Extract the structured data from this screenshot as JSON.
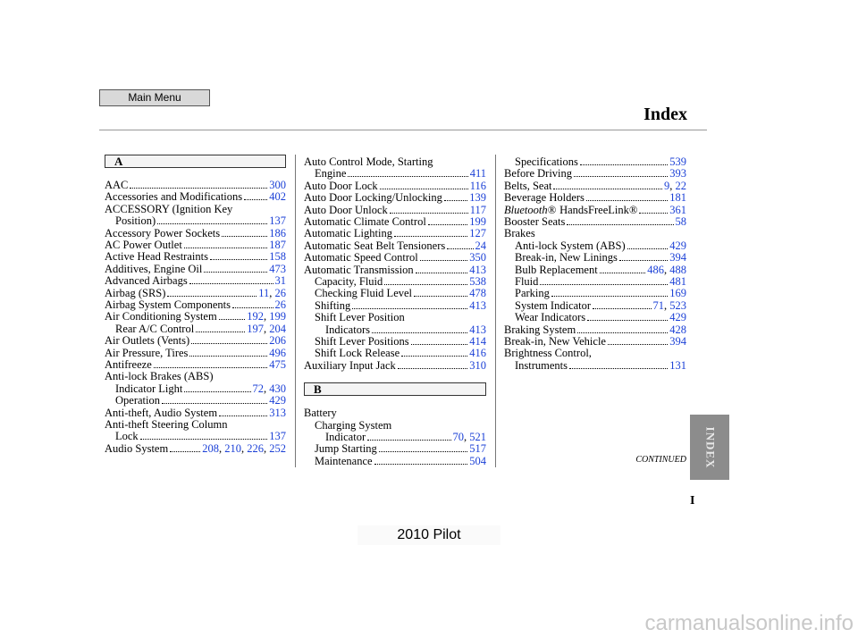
{
  "header": {
    "main_menu": "Main Menu",
    "title": "Index"
  },
  "side_tab": "INDEX",
  "continued": "CONTINUED",
  "page_letter": "I",
  "footer": "2010 Pilot",
  "watermark": "carmanualsonline.info",
  "columns": [
    {
      "items": [
        {
          "heading": "A"
        },
        {
          "lines": [
            "AAC"
          ],
          "pages": [
            "300"
          ]
        },
        {
          "lines": [
            "Accessories and Modifications"
          ],
          "pages": [
            "402"
          ]
        },
        {
          "lines": [
            "ACCESSORY (Ignition Key",
            "Position)"
          ],
          "pages": [
            "137"
          ]
        },
        {
          "lines": [
            "Accessory Power Sockets"
          ],
          "pages": [
            "186"
          ]
        },
        {
          "lines": [
            "AC Power Outlet"
          ],
          "pages": [
            "187"
          ]
        },
        {
          "lines": [
            "Active Head Restraints"
          ],
          "pages": [
            "158"
          ]
        },
        {
          "lines": [
            "Additives, Engine Oil"
          ],
          "pages": [
            "473"
          ]
        },
        {
          "lines": [
            "Advanced Airbags"
          ],
          "pages": [
            "31"
          ]
        },
        {
          "lines": [
            "Airbag (SRS)"
          ],
          "pages": [
            "11",
            "26"
          ]
        },
        {
          "lines": [
            "Airbag System Components"
          ],
          "pages": [
            "26"
          ]
        },
        {
          "lines": [
            "Air Conditioning System"
          ],
          "pages": [
            "192",
            "199"
          ],
          "sub": [
            {
              "lines": [
                "Rear A/C Control"
              ],
              "pages": [
                "197",
                "204"
              ]
            }
          ]
        },
        {
          "lines": [
            "Air Outlets (Vents)"
          ],
          "pages": [
            "206"
          ]
        },
        {
          "lines": [
            "Air Pressure, Tires"
          ],
          "pages": [
            "496"
          ]
        },
        {
          "lines": [
            "Antifreeze"
          ],
          "pages": [
            "475"
          ]
        },
        {
          "lines": [
            "Anti-lock Brakes (ABS)"
          ],
          "sub": [
            {
              "lines": [
                "Indicator Light"
              ],
              "pages": [
                "72",
                "430"
              ]
            },
            {
              "lines": [
                "Operation"
              ],
              "pages": [
                "429"
              ]
            }
          ]
        },
        {
          "lines": [
            "Anti-theft, Audio System"
          ],
          "pages": [
            "313"
          ]
        },
        {
          "lines": [
            "Anti-theft Steering Column",
            "Lock"
          ],
          "pages": [
            "137"
          ]
        },
        {
          "lines": [
            "Audio System"
          ],
          "pages": [
            "208",
            "210",
            "226",
            "252"
          ]
        }
      ]
    },
    {
      "items": [
        {
          "lines": [
            "Auto Control Mode, Starting",
            "Engine"
          ],
          "pages": [
            "411"
          ]
        },
        {
          "lines": [
            "Auto Door Lock"
          ],
          "pages": [
            "116"
          ]
        },
        {
          "lines": [
            "Auto Door Locking/Unlocking"
          ],
          "pages": [
            "139"
          ]
        },
        {
          "lines": [
            "Auto Door Unlock"
          ],
          "pages": [
            "117"
          ]
        },
        {
          "lines": [
            "Automatic Climate Control"
          ],
          "pages": [
            "199"
          ]
        },
        {
          "lines": [
            "Automatic Lighting"
          ],
          "pages": [
            "127"
          ]
        },
        {
          "lines": [
            "Automatic Seat Belt Tensioners"
          ],
          "pages": [
            "24"
          ]
        },
        {
          "lines": [
            "Automatic Speed Control"
          ],
          "pages": [
            "350"
          ]
        },
        {
          "lines": [
            "Automatic Transmission"
          ],
          "pages": [
            "413"
          ],
          "sub": [
            {
              "lines": [
                "Capacity, Fluid"
              ],
              "pages": [
                "538"
              ]
            },
            {
              "lines": [
                "Checking Fluid Level"
              ],
              "pages": [
                "478"
              ]
            },
            {
              "lines": [
                "Shifting"
              ],
              "pages": [
                "413"
              ]
            },
            {
              "lines": [
                "Shift Lever Position",
                "Indicators"
              ],
              "pages": [
                "413"
              ]
            },
            {
              "lines": [
                "Shift Lever Positions"
              ],
              "pages": [
                "414"
              ]
            },
            {
              "lines": [
                "Shift Lock Release"
              ],
              "pages": [
                "416"
              ]
            }
          ]
        },
        {
          "lines": [
            "Auxiliary Input Jack"
          ],
          "pages": [
            "310"
          ]
        },
        {
          "heading": "B"
        },
        {
          "lines": [
            "Battery"
          ],
          "sub": [
            {
              "lines": [
                "Charging System",
                "Indicator"
              ],
              "pages": [
                "70",
                "521"
              ]
            },
            {
              "lines": [
                "Jump Starting"
              ],
              "pages": [
                "517"
              ]
            },
            {
              "lines": [
                "Maintenance"
              ],
              "pages": [
                "504"
              ]
            }
          ]
        }
      ]
    },
    {
      "items": [
        {
          "sub": [
            {
              "lines": [
                "Specifications"
              ],
              "pages": [
                "539"
              ]
            }
          ]
        },
        {
          "lines": [
            "Before Driving"
          ],
          "pages": [
            "393"
          ]
        },
        {
          "lines": [
            "Belts, Seat"
          ],
          "pages": [
            "9",
            "22"
          ]
        },
        {
          "lines": [
            "Beverage Holders"
          ],
          "pages": [
            "181"
          ]
        },
        {
          "brand": "Bluetooth®",
          "lines": [
            "HandsFreeLink®"
          ],
          "pages": [
            "361"
          ]
        },
        {
          "lines": [
            "Booster Seats"
          ],
          "pages": [
            "58"
          ]
        },
        {
          "lines": [
            "Brakes"
          ],
          "sub": [
            {
              "lines": [
                "Anti-lock System (ABS)"
              ],
              "pages": [
                "429"
              ]
            },
            {
              "lines": [
                "Break-in, New Linings"
              ],
              "pages": [
                "394"
              ]
            },
            {
              "lines": [
                "Bulb Replacement"
              ],
              "pages": [
                "486",
                "488"
              ]
            },
            {
              "lines": [
                "Fluid"
              ],
              "pages": [
                "481"
              ]
            },
            {
              "lines": [
                "Parking"
              ],
              "pages": [
                "169"
              ]
            },
            {
              "lines": [
                "System Indicator"
              ],
              "pages": [
                "71",
                "523"
              ]
            },
            {
              "lines": [
                "Wear Indicators"
              ],
              "pages": [
                "429"
              ]
            }
          ]
        },
        {
          "lines": [
            "Braking System"
          ],
          "pages": [
            "428"
          ]
        },
        {
          "lines": [
            "Break-in, New Vehicle"
          ],
          "pages": [
            "394"
          ]
        },
        {
          "lines": [
            "Brightness Control,",
            "Instruments"
          ],
          "pages": [
            "131"
          ]
        }
      ]
    }
  ]
}
